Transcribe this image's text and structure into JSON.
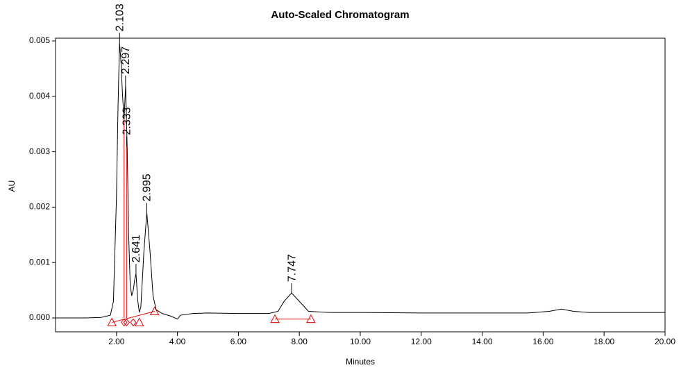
{
  "chart_data": {
    "type": "line",
    "title": "Auto-Scaled Chromatogram",
    "x_label": "Minutes",
    "y_label": "AU",
    "x": [
      0,
      0.5,
      1,
      1.5,
      1.8,
      1.9,
      2.0,
      2.05,
      2.1,
      2.15,
      2.2,
      2.25,
      2.3,
      2.35,
      2.4,
      2.45,
      2.5,
      2.55,
      2.6,
      2.64,
      2.7,
      2.75,
      2.8,
      2.9,
      2.995,
      3.1,
      3.2,
      3.3,
      3.5,
      3.8,
      4.0,
      4.1,
      4.5,
      5.0,
      6.0,
      7.0,
      7.3,
      7.5,
      7.747,
      8.0,
      8.3,
      8.6,
      9.0,
      10,
      12,
      14,
      15.5,
      16.2,
      16.6,
      17.0,
      17.5,
      18,
      19,
      20
    ],
    "values": [
      0,
      0,
      0,
      1e-05,
      5e-05,
      0.0003,
      0.0022,
      0.0038,
      0.00497,
      0.0046,
      0.004,
      0.0036,
      0.0042,
      0.0031,
      0.0015,
      0.0006,
      0.0004,
      0.0005,
      0.0007,
      0.0008,
      0.0003,
      0.0001,
      0.0002,
      0.0012,
      0.0019,
      0.0012,
      0.0004,
      0.00015,
      8e-05,
      3e-05,
      -2e-05,
      5e-05,
      8e-05,
      9e-05,
      8e-05,
      8e-05,
      0.00012,
      0.0003,
      0.00045,
      0.0003,
      0.00012,
      0.00011,
      0.0001,
      0.0001,
      9e-05,
      9e-05,
      9e-05,
      0.00012,
      0.00016,
      0.00012,
      0.0001,
      0.0001,
      0.0001,
      0.0001
    ],
    "color": "#000000",
    "peak_labels": {
      "x": [
        2.103,
        2.297,
        2.333,
        2.641,
        2.995,
        7.747
      ],
      "y": [
        0.00497,
        0.0042,
        0.0031,
        0.0008,
        0.0019,
        0.00045
      ]
    },
    "integration": [
      {
        "x": [
          1.85,
          2.25,
          2.33,
          2.55,
          2.75,
          3.25
        ],
        "y": [
          -8e-05,
          -8e-05,
          -8e-05,
          -8e-05,
          -8e-05,
          0.00012
        ]
      },
      {
        "x": [
          7.2,
          8.38
        ],
        "y": [
          -2e-05,
          -2e-05
        ]
      }
    ],
    "drop_lines": {
      "x": [
        2.25,
        2.33
      ],
      "y": [
        0.0036,
        0.0031
      ]
    },
    "integration_color": "#e00000",
    "xlim": [
      0,
      20
    ],
    "xticks": [
      {
        "value": 2,
        "label": "2.00"
      },
      {
        "value": 4,
        "label": "4.00"
      },
      {
        "value": 6,
        "label": "6.00"
      },
      {
        "value": 8,
        "label": "8.00"
      },
      {
        "value": 10,
        "label": "10.00"
      },
      {
        "value": 12,
        "label": "12.00"
      },
      {
        "value": 14,
        "label": "14.00"
      },
      {
        "value": 16,
        "label": "16.00"
      },
      {
        "value": 18,
        "label": "18.00"
      },
      {
        "value": 20,
        "label": "20.00"
      }
    ],
    "ylim": [
      -0.00025,
      0.00505
    ],
    "yticks": [
      {
        "value": 0,
        "label": "0.000"
      },
      {
        "value": 0.001,
        "label": "0.001"
      },
      {
        "value": 0.002,
        "label": "0.002"
      },
      {
        "value": 0.003,
        "label": "0.003"
      },
      {
        "value": 0.004,
        "label": "0.004"
      },
      {
        "value": 0.005,
        "label": "0.005"
      }
    ]
  }
}
